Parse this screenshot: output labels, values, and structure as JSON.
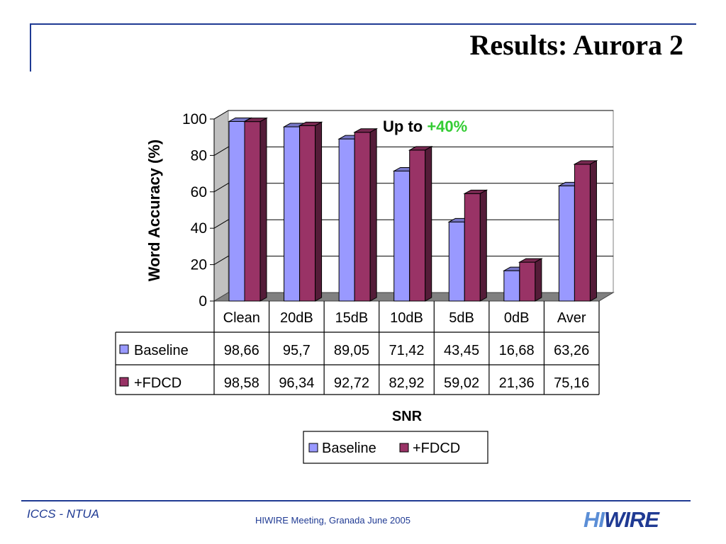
{
  "slide": {
    "title": "Results: Aurora 2",
    "footer_left": "ICCS - NTUA",
    "footer_center": "HIWIRE Meeting, Granada June 2005",
    "logo_hi": "HI",
    "logo_rest": "WIRE"
  },
  "chart_data": {
    "type": "bar",
    "categories": [
      "Clean",
      "20dB",
      "15dB",
      "10dB",
      "5dB",
      "0dB",
      "Aver"
    ],
    "series": [
      {
        "name": "Baseline",
        "values": [
          98.66,
          95.7,
          89.05,
          71.42,
          43.45,
          16.68,
          63.26
        ],
        "labels": [
          "98,66",
          "95,7",
          "89,05",
          "71,42",
          "43,45",
          "16,68",
          "63,26"
        ],
        "color": "#9999ff"
      },
      {
        "name": "+FDCD",
        "values": [
          98.58,
          96.34,
          92.72,
          82.92,
          59.02,
          21.36,
          75.16
        ],
        "labels": [
          "98,58",
          "96,34",
          "92,72",
          "82,92",
          "59,02",
          "21,36",
          "75,16"
        ],
        "color": "#993366"
      }
    ],
    "xlabel": "SNR",
    "ylabel": "Word Accuracy (%)",
    "ylim": [
      0,
      100
    ],
    "yticks": [
      0,
      20,
      40,
      60,
      80,
      100
    ],
    "annotation": {
      "prefix": "Up to",
      "highlight": "+40%",
      "highlight_color": "#33cc33"
    },
    "grid": true,
    "legend": "bottom"
  }
}
